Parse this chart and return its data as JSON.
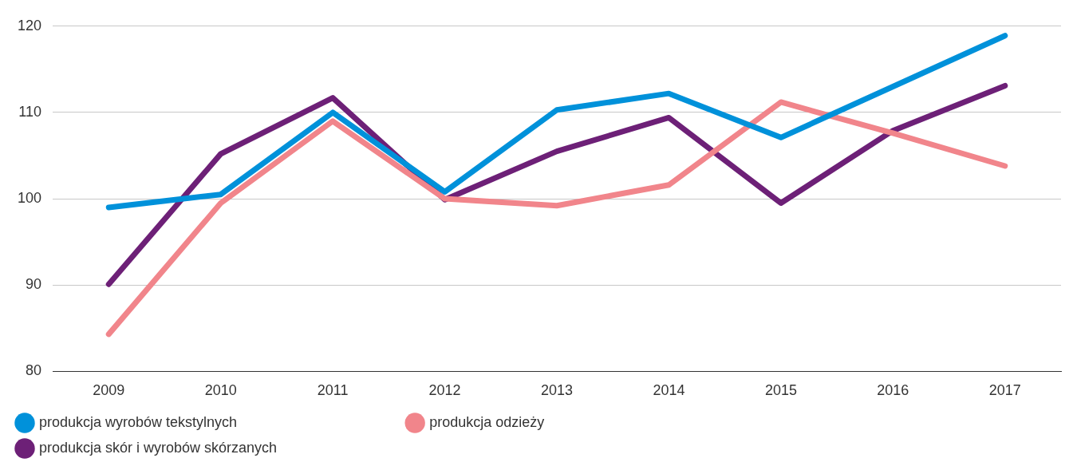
{
  "chart_data": {
    "type": "line",
    "categories": [
      "2009",
      "2010",
      "2011",
      "2012",
      "2013",
      "2014",
      "2015",
      "2016",
      "2017"
    ],
    "series": [
      {
        "name": "produkcja wyrobów tekstylnych",
        "color": "#0091da",
        "values": [
          99.0,
          100.5,
          110.0,
          100.8,
          110.3,
          112.2,
          107.1,
          113.0,
          118.9
        ]
      },
      {
        "name": "produkcja odzieży",
        "color": "#f1858b",
        "values": [
          84.3,
          99.5,
          109.0,
          100.0,
          99.2,
          101.6,
          111.2,
          107.6,
          103.8
        ]
      },
      {
        "name": "produkcja skór i wyrobów skórzanych",
        "color": "#6d2077",
        "values": [
          90.1,
          105.2,
          111.7,
          99.9,
          105.5,
          109.4,
          99.5,
          107.9,
          113.1
        ]
      }
    ],
    "ylim": [
      80,
      120
    ],
    "yticks": [
      80,
      90,
      100,
      110,
      120
    ],
    "grid": "y",
    "legend": "bottom",
    "marker": "none",
    "line_style": "solid"
  }
}
